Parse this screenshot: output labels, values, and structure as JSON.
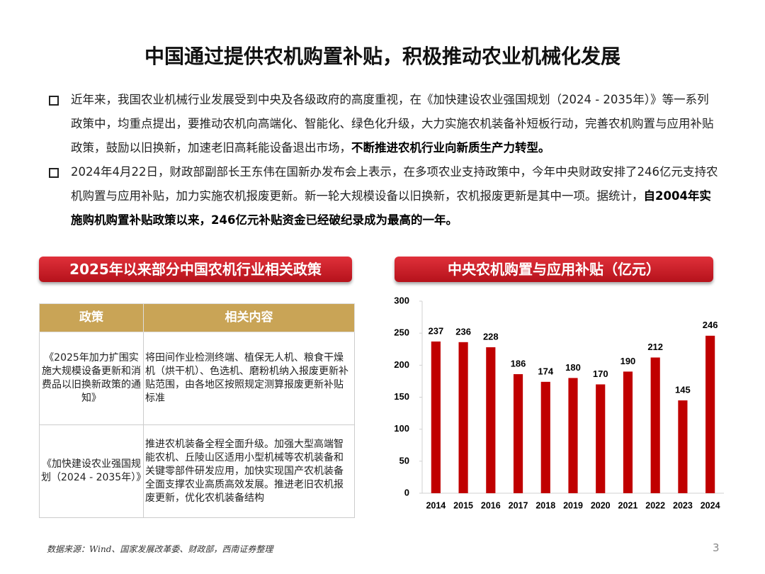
{
  "header": {
    "title": "中国通过提供农机购置补贴，积极推动农业机械化发展"
  },
  "bullets": [
    {
      "segments": [
        {
          "text": "近年来，我国农业机械行业发展受到中央及各级政府的高度重视，在《加快建设农业强国规划（2024 - 2035年）》等一系列政策中，均重点提出，要推动农机向高端化、智能化、绿色化升级，大力实施农机装备补短板行动，完善农机购置与应用补贴政策，鼓励以旧换新，加速老旧高耗能设备退出市场，",
          "bold": false
        },
        {
          "text": "不断推进农机行业向新质生产力转型。",
          "bold": true
        }
      ]
    },
    {
      "segments": [
        {
          "text": "2024年4月22日，财政部副部长王东伟在国新办发布会上表示，在多项农业支持政策中，今年中央财政安排了246亿元支持农机购置与应用补贴，加力实施农机报废更新。新一轮大规模设备以旧换新，农机报废更新是其中一项。据统计，",
          "bold": false
        },
        {
          "text": "自2004年实施购机购置补贴政策以来，246亿元补贴资金已经破纪录成为最高的一年。",
          "bold": true
        }
      ]
    }
  ],
  "table": {
    "title": "2025年以来部分中国农机行业相关政策",
    "columns": [
      "政策",
      "相关内容"
    ],
    "rows": [
      [
        "《2025年加力扩围实施大规模设备更新和消费品以旧换新政策的通知》",
        "将田间作业检测终端、植保无人机、粮食干燥机（烘干机）、色选机、磨粉机纳入报废更新补贴范围，由各地区按照规定测算报废更新补贴标准"
      ],
      [
        "《加快建设农业强国规划（2024 - 2035年）》",
        "推进农机装备全程全面升级。加强大型高端智能农机、丘陵山区适用小型机械等农机装备和关键零部件研发应用，加快实现国产农机装备全面支撑农业高质高效发展。推进老旧农机报废更新，优化农机装备结构"
      ]
    ]
  },
  "chart_data": {
    "type": "bar",
    "title": "中央农机购置与应用补贴（亿元）",
    "categories": [
      "2014",
      "2015",
      "2016",
      "2017",
      "2018",
      "2019",
      "2020",
      "2021",
      "2022",
      "2023",
      "2024"
    ],
    "values": [
      237,
      236,
      228,
      186,
      174,
      180,
      170,
      190,
      212,
      145,
      246
    ],
    "color": "#c00000",
    "ylim": [
      0,
      300
    ],
    "yticks": [
      0,
      50,
      100,
      150,
      200,
      250,
      300
    ]
  },
  "footer": {
    "source": "数据来源：Wind、国家发展改革委、财政部，西南证券整理",
    "page": "3"
  }
}
